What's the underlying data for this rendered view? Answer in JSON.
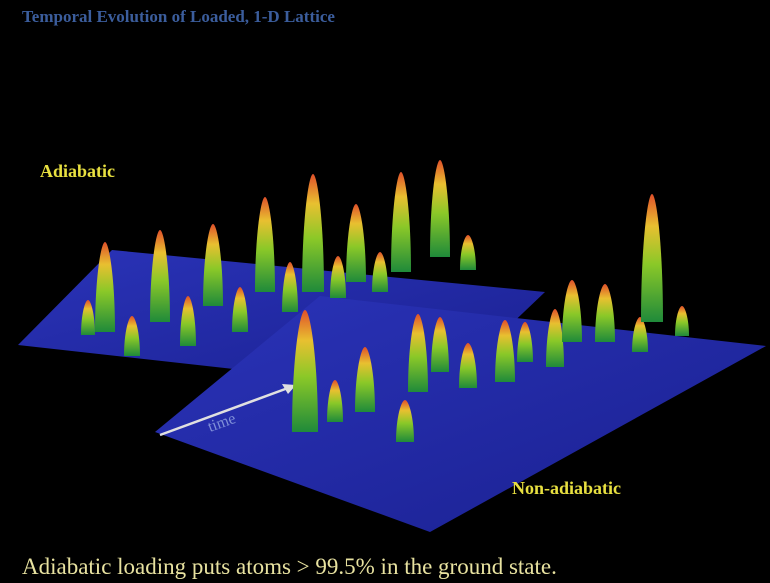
{
  "slide": {
    "title": "Temporal Evolution of Loaded, 1-D Lattice",
    "labels": {
      "adiabatic": "Adiabatic",
      "non_adiabatic": "Non-adiabatic",
      "time": "time"
    },
    "caption": "Adiabatic loading puts atoms > 99.5% in the ground state."
  }
}
